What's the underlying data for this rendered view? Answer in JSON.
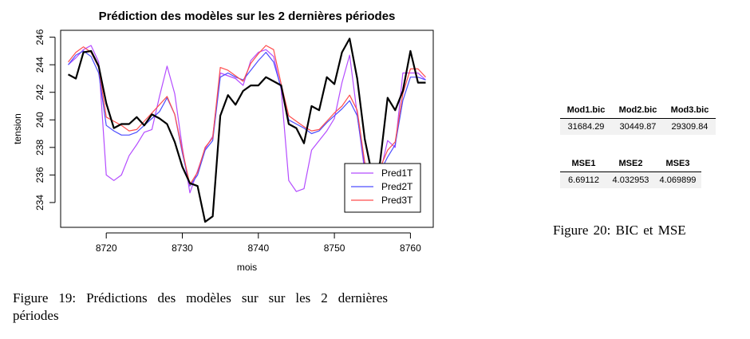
{
  "chart_data": {
    "type": "line",
    "title": "Prédiction des modèles sur les 2 dernières périodes",
    "xlabel": "mois",
    "ylabel": "tension",
    "xlim": [
      8714,
      8763
    ],
    "ylim": [
      232.2,
      246.5
    ],
    "x_ticks": [
      8720,
      8730,
      8740,
      8750,
      8760
    ],
    "y_ticks": [
      234,
      236,
      238,
      240,
      242,
      244,
      246
    ],
    "legend_position": "bottom-right",
    "x": [
      8715,
      8716,
      8717,
      8718,
      8719,
      8720,
      8721,
      8722,
      8723,
      8724,
      8725,
      8726,
      8727,
      8728,
      8729,
      8730,
      8731,
      8732,
      8733,
      8734,
      8735,
      8736,
      8737,
      8738,
      8739,
      8740,
      8741,
      8742,
      8743,
      8744,
      8745,
      8746,
      8747,
      8748,
      8749,
      8750,
      8751,
      8752,
      8753,
      8754,
      8755,
      8756,
      8757,
      8758,
      8759,
      8760,
      8761,
      8762
    ],
    "series": [
      {
        "name": "Pred1T",
        "color": "#b44cff",
        "values": [
          244.0,
          244.5,
          245.1,
          245.4,
          244.2,
          236.0,
          235.6,
          236.0,
          237.4,
          238.2,
          239.1,
          239.3,
          241.7,
          243.9,
          241.9,
          238.0,
          234.7,
          236.3,
          237.9,
          238.8,
          243.4,
          243.2,
          243.0,
          242.5,
          244.3,
          244.9,
          245.1,
          244.6,
          242.2,
          235.6,
          234.8,
          235.0,
          237.8,
          238.5,
          239.2,
          240.1,
          242.7,
          244.7,
          240.4,
          236.2,
          235.0,
          236.1,
          238.5,
          238.0,
          243.4,
          243.4,
          243.4,
          242.9
        ]
      },
      {
        "name": "Pred2T",
        "color": "#4d4dff",
        "values": [
          244.0,
          244.7,
          245.0,
          244.6,
          243.4,
          239.6,
          239.2,
          238.9,
          238.9,
          239.1,
          239.6,
          240.1,
          240.6,
          241.6,
          240.4,
          237.6,
          235.2,
          236.0,
          237.8,
          238.5,
          243.1,
          243.4,
          243.1,
          242.9,
          243.6,
          244.3,
          244.9,
          244.2,
          242.3,
          240.0,
          239.7,
          239.4,
          239.0,
          239.2,
          239.8,
          240.3,
          240.8,
          241.4,
          240.3,
          236.6,
          235.4,
          236.2,
          237.3,
          238.2,
          241.4,
          243.1,
          243.1,
          242.9
        ]
      },
      {
        "name": "Pred3T",
        "color": "#ff4d4d",
        "values": [
          244.2,
          244.9,
          245.3,
          244.9,
          243.8,
          240.2,
          239.9,
          239.6,
          239.2,
          239.3,
          239.9,
          240.5,
          241.1,
          241.7,
          240.4,
          237.8,
          235.3,
          236.2,
          238.0,
          238.7,
          243.8,
          243.6,
          243.2,
          242.8,
          244.1,
          244.8,
          245.4,
          245.1,
          242.6,
          240.3,
          239.9,
          239.5,
          239.2,
          239.3,
          239.9,
          240.5,
          241.0,
          241.8,
          240.7,
          236.9,
          235.7,
          236.5,
          237.8,
          238.4,
          241.9,
          243.7,
          243.7,
          243.1
        ]
      },
      {
        "name": "",
        "color": "#000000",
        "values": [
          243.3,
          243.0,
          244.9,
          245.0,
          243.9,
          241.2,
          239.4,
          239.7,
          239.7,
          240.2,
          239.6,
          240.4,
          240.1,
          239.7,
          238.4,
          236.6,
          235.4,
          235.2,
          232.6,
          233.0,
          240.3,
          241.8,
          241.1,
          242.1,
          242.5,
          242.5,
          243.1,
          242.8,
          242.5,
          239.7,
          239.4,
          238.3,
          241.0,
          240.7,
          243.1,
          242.6,
          244.9,
          245.9,
          243.0,
          238.6,
          235.9,
          236.9,
          241.6,
          240.7,
          242.1,
          245.0,
          242.7,
          242.7
        ]
      }
    ]
  },
  "bic_table": {
    "headers": [
      "Mod1.bic",
      "Mod2.bic",
      "Mod3.bic"
    ],
    "values": [
      "31684.29",
      "30449.87",
      "29309.84"
    ]
  },
  "mse_table": {
    "headers": [
      "MSE1",
      "MSE2",
      "MSE3"
    ],
    "values": [
      "6.69112",
      "4.032953",
      "4.069899"
    ]
  },
  "captions": {
    "fig19": "Figure 19:  Prédictions des modèles sur sur les 2 dernières périodes",
    "fig20": "Figure 20: BIC et MSE"
  }
}
